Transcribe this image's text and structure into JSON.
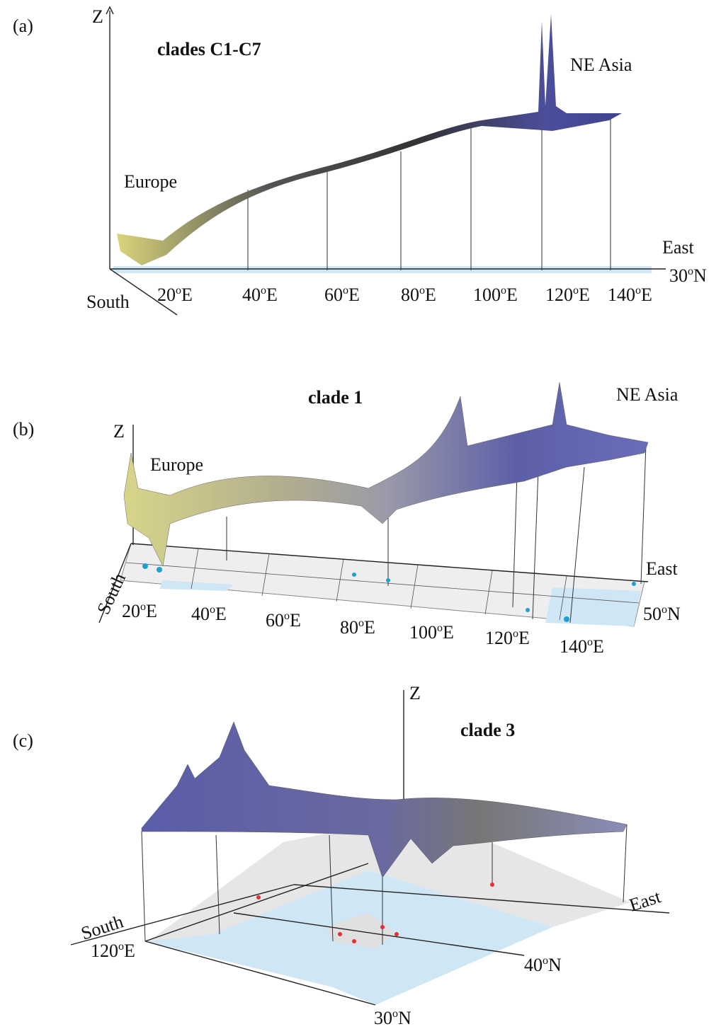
{
  "panels": [
    {
      "label": "(a)",
      "title": "clades C1-C7",
      "z_axis": "Z",
      "regions": [
        "Europe",
        "NE Asia"
      ],
      "east": "East",
      "south": "South",
      "lat_labels": [
        {
          "value": "30",
          "sup": "o",
          "dir": "N"
        }
      ],
      "lon_labels": [
        {
          "value": "20",
          "sup": "o",
          "dir": "E"
        },
        {
          "value": "40",
          "sup": "o",
          "dir": "E"
        },
        {
          "value": "60",
          "sup": "o",
          "dir": "E"
        },
        {
          "value": "80",
          "sup": "o",
          "dir": "E"
        },
        {
          "value": "100",
          "sup": "o",
          "dir": "E"
        },
        {
          "value": "120",
          "sup": "o",
          "dir": "E"
        },
        {
          "value": "140",
          "sup": "o",
          "dir": "E"
        }
      ]
    },
    {
      "label": "(b)",
      "title": "clade 1",
      "z_axis": "Z",
      "regions": [
        "Europe",
        "NE Asia"
      ],
      "east": "East",
      "south": "South",
      "lat_labels": [
        {
          "value": "50",
          "sup": "o",
          "dir": "N"
        }
      ],
      "lon_labels": [
        {
          "value": "20",
          "sup": "o",
          "dir": "E"
        },
        {
          "value": "40",
          "sup": "o",
          "dir": "E"
        },
        {
          "value": "60",
          "sup": "o",
          "dir": "E"
        },
        {
          "value": "80",
          "sup": "o",
          "dir": "E"
        },
        {
          "value": "100",
          "sup": "o",
          "dir": "E"
        },
        {
          "value": "120",
          "sup": "o",
          "dir": "E"
        },
        {
          "value": "140",
          "sup": "o",
          "dir": "E"
        }
      ]
    },
    {
      "label": "(c)",
      "title": "clade 3",
      "z_axis": "Z",
      "regions": [],
      "east": "East",
      "south": "South",
      "lat_labels": [
        {
          "value": "40",
          "sup": "o",
          "dir": "N"
        },
        {
          "value": "30",
          "sup": "o",
          "dir": "N"
        }
      ],
      "lon_labels": [
        {
          "value": "120",
          "sup": "o",
          "dir": "E"
        }
      ]
    }
  ]
}
